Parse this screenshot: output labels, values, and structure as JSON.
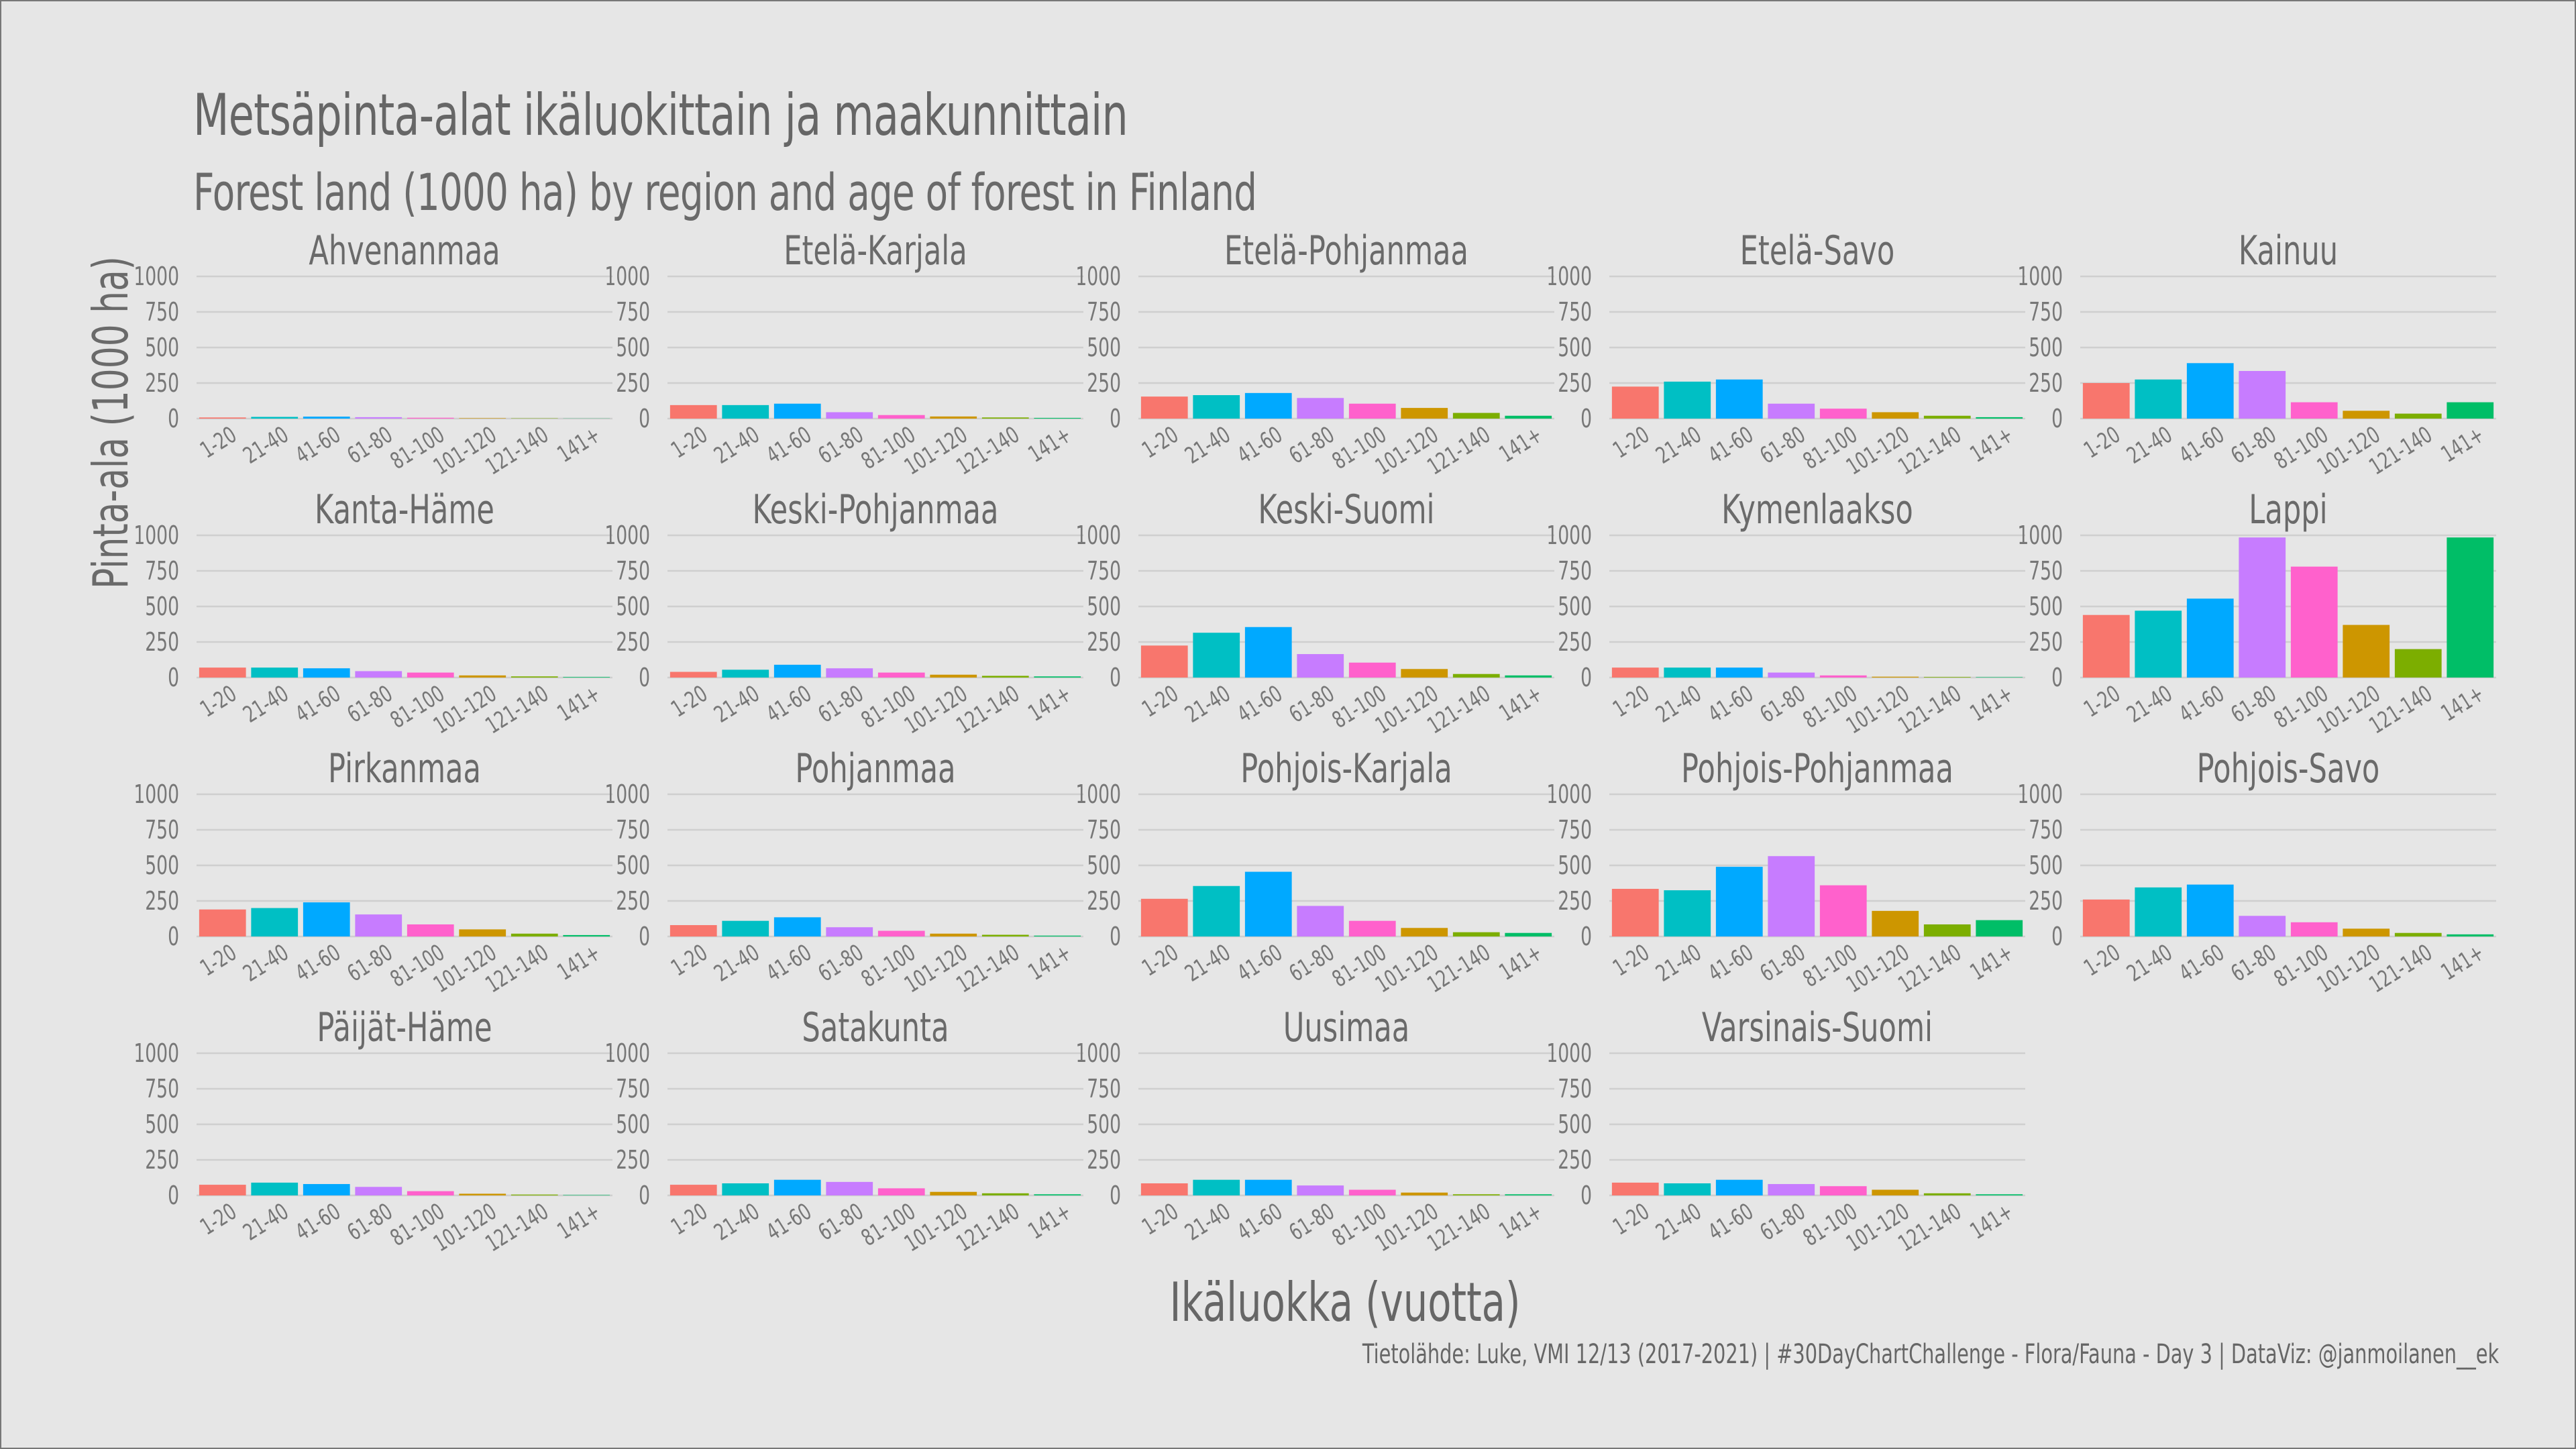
{
  "title": "Metsäpinta-alat ikäluokittain ja maakunnittain",
  "subtitle": "Forest land (1000 ha) by region and age of forest in Finland",
  "caption": "Tietolähde: Luke, VMI 12/13 (2017-2021)   |   #30DayChartChallenge - Flora/Fauna - Day 3   |   DataViz: @janmoilanen__ek",
  "colors": {
    "background": "#e6e6e6",
    "grid": "#cfcfcf",
    "text": "#666666",
    "bars": [
      "#f8766d",
      "#00bfc4",
      "#00a9ff",
      "#c77cff",
      "#ff61cc",
      "#cd9600",
      "#7cae00",
      "#00be67"
    ]
  },
  "chart_data": {
    "type": "bar",
    "facet": "region",
    "layout": "4 rows x 5 columns",
    "xlabel": "Ikäluokka (vuotta)",
    "ylabel": "Pinta-ala (1000 ha)",
    "ylim": [
      0,
      1000
    ],
    "yticks": [
      0,
      250,
      500,
      750,
      1000
    ],
    "ytick_labels": [
      "0",
      "250",
      "500",
      "750",
      "1000"
    ],
    "grid": "horizontal",
    "legend": "none",
    "categories": [
      "1-20",
      "21-40",
      "41-60",
      "61-80",
      "81-100",
      "101-120",
      "121-140",
      "141+"
    ],
    "panels": [
      {
        "name": "Ahvenanmaa",
        "values": [
          8,
          12,
          14,
          10,
          6,
          3,
          2,
          1
        ]
      },
      {
        "name": "Etelä-Karjala",
        "values": [
          95,
          95,
          105,
          45,
          25,
          15,
          8,
          5
        ]
      },
      {
        "name": "Etelä-Pohjanmaa",
        "values": [
          155,
          165,
          180,
          145,
          105,
          75,
          40,
          20
        ]
      },
      {
        "name": "Etelä-Savo",
        "values": [
          225,
          260,
          275,
          105,
          70,
          45,
          20,
          10
        ]
      },
      {
        "name": "Kainuu",
        "values": [
          250,
          275,
          390,
          335,
          115,
          55,
          35,
          115
        ]
      },
      {
        "name": "Kanta-Häme",
        "values": [
          70,
          70,
          65,
          45,
          35,
          15,
          8,
          4
        ]
      },
      {
        "name": "Keski-Pohjanmaa",
        "values": [
          40,
          55,
          90,
          65,
          35,
          20,
          12,
          8
        ]
      },
      {
        "name": "Keski-Suomi",
        "values": [
          225,
          315,
          355,
          165,
          105,
          60,
          25,
          15
        ]
      },
      {
        "name": "Kymenlaakso",
        "values": [
          70,
          70,
          70,
          35,
          15,
          6,
          4,
          3
        ]
      },
      {
        "name": "Lappi",
        "values": [
          440,
          470,
          555,
          985,
          780,
          370,
          200,
          985
        ]
      },
      {
        "name": "Pirkanmaa",
        "values": [
          190,
          200,
          240,
          155,
          85,
          50,
          20,
          10
        ]
      },
      {
        "name": "Pohjanmaa",
        "values": [
          80,
          110,
          135,
          65,
          40,
          20,
          12,
          6
        ]
      },
      {
        "name": "Pohjois-Karjala",
        "values": [
          265,
          355,
          455,
          215,
          110,
          60,
          30,
          25
        ]
      },
      {
        "name": "Pohjois-Pohjanmaa",
        "values": [
          335,
          325,
          490,
          565,
          360,
          180,
          85,
          115
        ]
      },
      {
        "name": "Pohjois-Savo",
        "values": [
          260,
          345,
          365,
          145,
          100,
          55,
          25,
          15
        ]
      },
      {
        "name": "Päijät-Häme",
        "values": [
          75,
          90,
          80,
          60,
          30,
          12,
          6,
          3
        ]
      },
      {
        "name": "Satakunta",
        "values": [
          75,
          85,
          110,
          95,
          50,
          25,
          15,
          8
        ]
      },
      {
        "name": "Uusimaa",
        "values": [
          85,
          110,
          110,
          70,
          40,
          20,
          8,
          8
        ]
      },
      {
        "name": "Varsinais-Suomi",
        "values": [
          90,
          85,
          110,
          80,
          65,
          40,
          15,
          8
        ]
      }
    ]
  }
}
